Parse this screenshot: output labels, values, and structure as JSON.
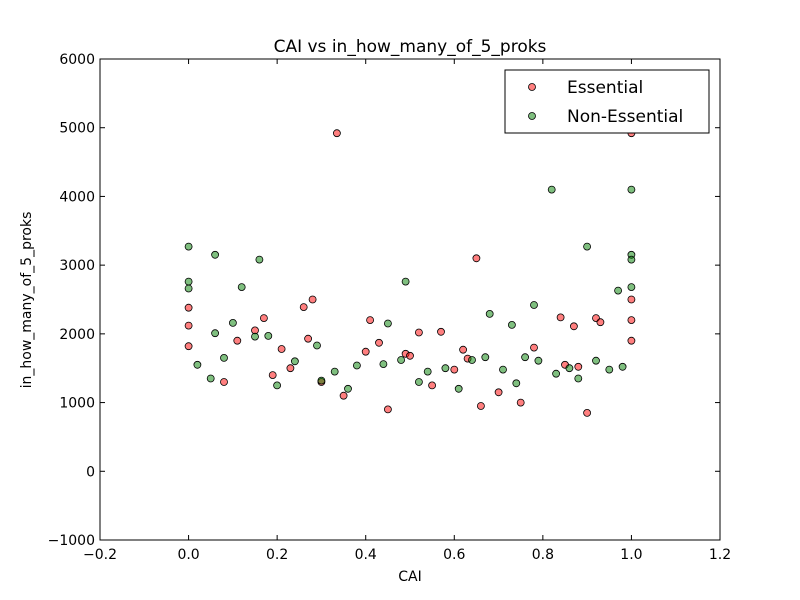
{
  "chart_data": {
    "type": "scatter",
    "title": "CAI vs in_how_many_of_5_proks",
    "xlabel": "CAI",
    "ylabel": "in_how_many_of_5_proks",
    "xlim": [
      -0.2,
      1.2
    ],
    "ylim": [
      -1000,
      6000
    ],
    "xticks": [
      -0.2,
      0.0,
      0.2,
      0.4,
      0.6,
      0.8,
      1.0,
      1.2
    ],
    "xtick_labels": [
      "−0.2",
      "0.0",
      "0.2",
      "0.4",
      "0.6",
      "0.8",
      "1.0",
      "1.2"
    ],
    "yticks": [
      -1000,
      0,
      1000,
      2000,
      3000,
      4000,
      5000,
      6000
    ],
    "ytick_labels": [
      "−1000",
      "0",
      "1000",
      "2000",
      "3000",
      "4000",
      "5000",
      "6000"
    ],
    "grid": false,
    "legend_position": "top-right",
    "series": [
      {
        "name": "Essential",
        "color": "#ff0000",
        "points": [
          [
            0.335,
            4920
          ],
          [
            1.0,
            4920
          ],
          [
            0.65,
            3100
          ],
          [
            0.28,
            2500
          ],
          [
            0.26,
            2390
          ],
          [
            0.41,
            2200
          ],
          [
            0.17,
            2230
          ],
          [
            0.15,
            2050
          ],
          [
            0.52,
            2020
          ],
          [
            0.57,
            2030
          ],
          [
            0.84,
            2240
          ],
          [
            0.87,
            2110
          ],
          [
            0.92,
            2230
          ],
          [
            0.93,
            2170
          ],
          [
            0.11,
            1900
          ],
          [
            0.27,
            1930
          ],
          [
            0.21,
            1780
          ],
          [
            0.23,
            1500
          ],
          [
            0.4,
            1740
          ],
          [
            0.43,
            1870
          ],
          [
            0.49,
            1710
          ],
          [
            0.5,
            1680
          ],
          [
            0.6,
            1480
          ],
          [
            0.62,
            1770
          ],
          [
            0.63,
            1640
          ],
          [
            0.78,
            1800
          ],
          [
            0.85,
            1550
          ],
          [
            0.88,
            1520
          ],
          [
            0.19,
            1400
          ],
          [
            0.3,
            1300
          ],
          [
            0.0,
            2380
          ],
          [
            0.0,
            2120
          ],
          [
            0.0,
            1820
          ],
          [
            1.0,
            2500
          ],
          [
            1.0,
            2200
          ],
          [
            1.0,
            1900
          ],
          [
            0.35,
            1100
          ],
          [
            0.55,
            1250
          ],
          [
            0.7,
            1150
          ],
          [
            0.08,
            1300
          ],
          [
            0.45,
            900
          ],
          [
            0.66,
            950
          ],
          [
            0.75,
            1000
          ],
          [
            0.9,
            850
          ]
        ]
      },
      {
        "name": "Non-Essential",
        "color": "#008000",
        "points": [
          [
            0.82,
            4100
          ],
          [
            1.0,
            4100
          ],
          [
            0.0,
            3270
          ],
          [
            0.9,
            3270
          ],
          [
            0.06,
            3150
          ],
          [
            1.0,
            3150
          ],
          [
            1.0,
            3080
          ],
          [
            0.16,
            3080
          ],
          [
            0.49,
            2760
          ],
          [
            0.0,
            2760
          ],
          [
            0.0,
            2660
          ],
          [
            0.12,
            2680
          ],
          [
            0.97,
            2630
          ],
          [
            1.0,
            2680
          ],
          [
            0.78,
            2420
          ],
          [
            0.68,
            2290
          ],
          [
            0.73,
            2130
          ],
          [
            0.45,
            2150
          ],
          [
            0.1,
            2160
          ],
          [
            0.06,
            2010
          ],
          [
            0.18,
            1970
          ],
          [
            0.15,
            1960
          ],
          [
            0.29,
            1830
          ],
          [
            0.33,
            1450
          ],
          [
            0.38,
            1540
          ],
          [
            0.44,
            1560
          ],
          [
            0.48,
            1620
          ],
          [
            0.54,
            1450
          ],
          [
            0.58,
            1500
          ],
          [
            0.64,
            1620
          ],
          [
            0.67,
            1660
          ],
          [
            0.71,
            1480
          ],
          [
            0.76,
            1660
          ],
          [
            0.79,
            1610
          ],
          [
            0.83,
            1420
          ],
          [
            0.86,
            1500
          ],
          [
            0.92,
            1610
          ],
          [
            0.95,
            1480
          ],
          [
            0.08,
            1650
          ],
          [
            0.24,
            1600
          ],
          [
            0.3,
            1320
          ],
          [
            0.2,
            1250
          ],
          [
            0.02,
            1550
          ],
          [
            0.98,
            1520
          ],
          [
            0.05,
            1350
          ],
          [
            0.36,
            1200
          ],
          [
            0.52,
            1300
          ],
          [
            0.61,
            1200
          ],
          [
            0.74,
            1280
          ],
          [
            0.88,
            1350
          ]
        ]
      }
    ]
  }
}
